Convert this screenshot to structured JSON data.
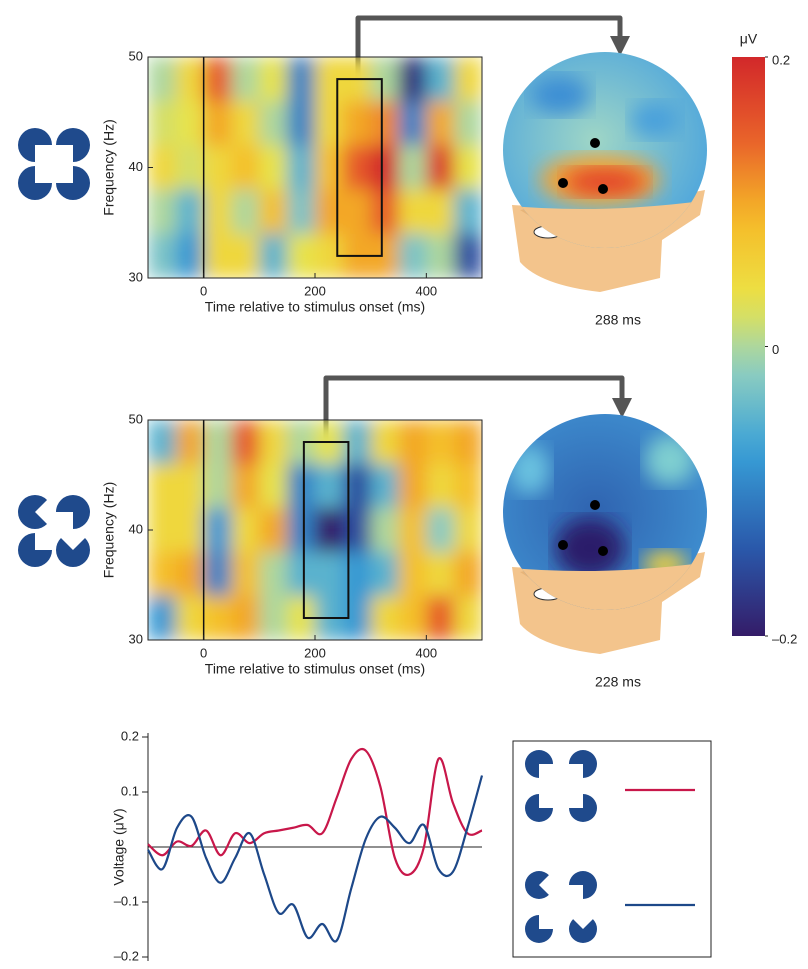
{
  "chart_data": [
    {
      "type": "heatmap",
      "x_label": "Time relative to stimulus onset (ms)",
      "y_label": "Frequency (Hz)",
      "x": [
        -75,
        -25,
        25,
        75,
        125,
        175,
        225,
        275,
        325,
        375,
        425,
        475
      ],
      "y": [
        48,
        44,
        40,
        36,
        32
      ],
      "values": [
        [
          0.0,
          0.05,
          0.15,
          0.0,
          0.03,
          -0.1,
          0.05,
          0.05,
          0.0,
          -0.18,
          -0.05,
          0.05
        ],
        [
          0.02,
          0.03,
          0.1,
          0.05,
          0.0,
          -0.1,
          0.05,
          0.1,
          0.12,
          -0.1,
          0.1,
          0.0
        ],
        [
          0.05,
          0.02,
          0.05,
          0.08,
          0.03,
          -0.05,
          0.08,
          0.15,
          0.2,
          0.0,
          0.18,
          0.03
        ],
        [
          0.0,
          -0.05,
          0.05,
          0.0,
          0.08,
          -0.03,
          0.1,
          0.1,
          0.15,
          0.05,
          0.05,
          -0.05
        ],
        [
          -0.03,
          -0.08,
          0.05,
          0.05,
          -0.05,
          0.03,
          0.05,
          0.1,
          0.1,
          -0.03,
          0.0,
          -0.15
        ]
      ],
      "xlim": [
        -100,
        500
      ],
      "ylim": [
        30,
        50
      ],
      "xticks": [
        0,
        200,
        400
      ],
      "yticks": [
        30,
        40,
        50
      ],
      "vline": 0,
      "highlight": {
        "x": [
          240,
          320
        ],
        "y": [
          32,
          48
        ]
      },
      "map_label": "288 ms"
    },
    {
      "type": "heatmap",
      "x_label": "Time relative to stimulus onset (ms)",
      "y_label": "Frequency (Hz)",
      "x": [
        -75,
        -25,
        25,
        75,
        125,
        175,
        225,
        275,
        325,
        375,
        425,
        475
      ],
      "y": [
        48,
        44,
        40,
        36,
        32
      ],
      "values": [
        [
          -0.05,
          0.1,
          0.0,
          0.15,
          0.05,
          0.0,
          0.03,
          -0.05,
          0.05,
          0.1,
          0.08,
          0.1
        ],
        [
          0.05,
          0.05,
          0.0,
          0.1,
          0.03,
          -0.1,
          -0.05,
          -0.15,
          -0.05,
          0.1,
          0.05,
          0.08
        ],
        [
          0.05,
          0.05,
          -0.08,
          0.05,
          0.1,
          -0.1,
          -0.2,
          -0.15,
          0.0,
          0.08,
          -0.02,
          0.05
        ],
        [
          0.08,
          0.1,
          -0.1,
          0.08,
          0.0,
          -0.05,
          -0.05,
          -0.08,
          -0.05,
          0.08,
          0.05,
          0.1
        ],
        [
          -0.08,
          0.05,
          0.08,
          0.1,
          0.0,
          0.03,
          -0.05,
          -0.08,
          0.05,
          0.08,
          0.15,
          0.05
        ]
      ],
      "xlim": [
        -100,
        500
      ],
      "ylim": [
        30,
        50
      ],
      "xticks": [
        0,
        200,
        400
      ],
      "yticks": [
        30,
        40,
        50
      ],
      "vline": 0,
      "highlight": {
        "x": [
          180,
          260
        ],
        "y": [
          32,
          48
        ]
      },
      "map_label": "228 ms"
    },
    {
      "type": "colorbar",
      "title": "μV",
      "clim": [
        -0.2,
        0.2
      ],
      "ticks": [
        0.2,
        0,
        {
          "value": -0.2,
          "label": "–0.2"
        }
      ]
    },
    {
      "type": "line",
      "y_label": "Voltage (μV)",
      "ylim": [
        -0.2,
        0.2
      ],
      "yticks": [
        0.2,
        0.1,
        {
          "value": -0.1,
          "label": "–0.1"
        },
        {
          "value": -0.2,
          "label": "–0.2"
        }
      ],
      "series": [
        {
          "color": "#c8174a",
          "values": [
            0.005,
            -0.015,
            0.01,
            0.002,
            0.03,
            -0.015,
            0.025,
            0.007,
            0.025,
            0.03,
            0.035,
            0.04,
            0.025,
            0.09,
            0.16,
            0.175,
            0.11,
            -0.02,
            -0.05,
            0.0,
            0.16,
            0.08,
            0.025,
            0.03
          ]
        },
        {
          "color": "#1d4889",
          "values": [
            -0.005,
            -0.04,
            0.035,
            0.055,
            -0.02,
            -0.065,
            -0.02,
            0.025,
            -0.05,
            -0.12,
            -0.105,
            -0.165,
            -0.14,
            -0.17,
            -0.075,
            0.015,
            0.055,
            0.035,
            0.007,
            0.04,
            -0.04,
            -0.045,
            0.035,
            0.13
          ]
        }
      ]
    }
  ]
}
